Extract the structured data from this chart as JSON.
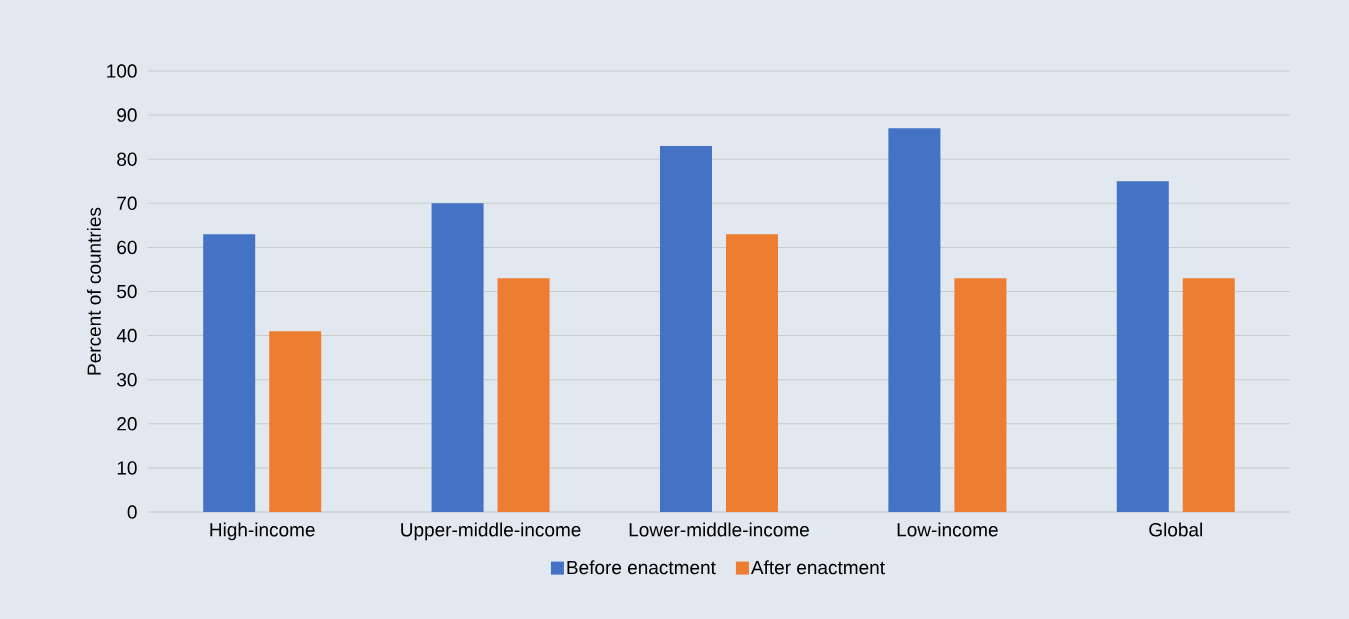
{
  "chart_data": {
    "type": "bar",
    "ylabel": "Percent of countries",
    "categories": [
      "High-income",
      "Upper-middle-income",
      "Lower-middle-income",
      "Low-income",
      "Global"
    ],
    "series": [
      {
        "name": "Before enactment",
        "color": "#4472c4",
        "values": [
          63,
          70,
          83,
          87,
          75
        ]
      },
      {
        "name": "After enactment",
        "color": "#ed7d31",
        "values": [
          41,
          53,
          63,
          53,
          53
        ]
      }
    ],
    "ylim": [
      0,
      100
    ],
    "yticks": [
      0,
      10,
      20,
      30,
      40,
      50,
      60,
      70,
      80,
      90,
      100
    ],
    "grid": "y",
    "legend": "bottom"
  }
}
